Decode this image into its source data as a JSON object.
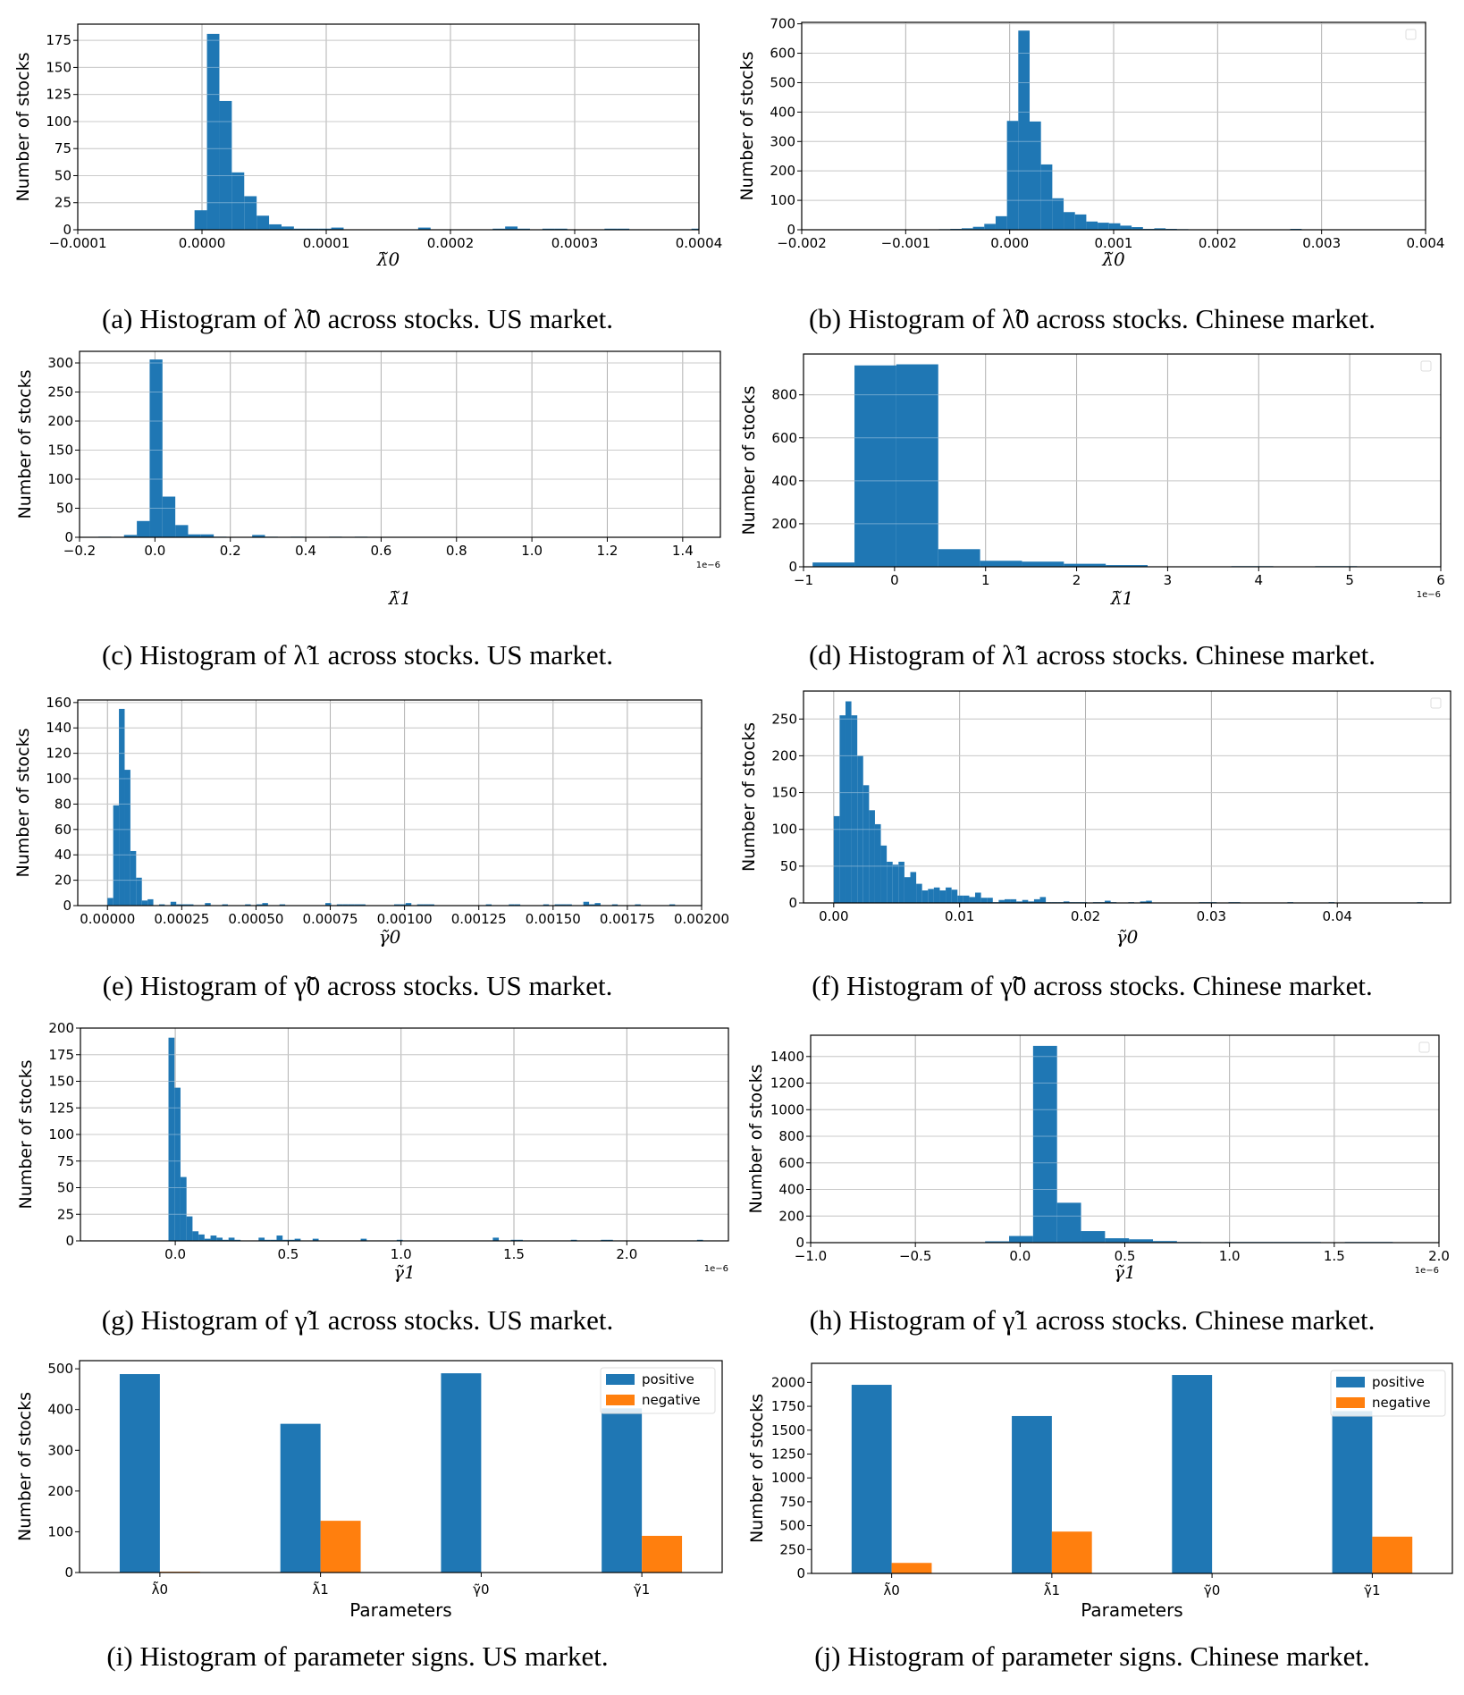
{
  "colors": {
    "bar": "#1f77b4",
    "positive": "#1f77b4",
    "negative": "#ff7f0e",
    "grid": "#b0b0b0"
  },
  "chart_data": [
    {
      "id": "a",
      "type": "bar",
      "caption": "(a) Histogram of λ̃0 across stocks. US market.",
      "xlabel": "λ̃0",
      "ylabel": "Number of stocks",
      "offset_label": "",
      "xlim": [
        -0.0001,
        0.0004
      ],
      "ylim": [
        0,
        190
      ],
      "xticks": [
        -0.0001,
        0.0,
        0.0001,
        0.0002,
        0.0003,
        0.0004
      ],
      "xtick_labels": [
        "−0.0001",
        "0.0000",
        "0.0001",
        "0.0002",
        "0.0003",
        "0.0004"
      ],
      "yticks": [
        0,
        25,
        50,
        75,
        100,
        125,
        150,
        175
      ],
      "ytick_labels": [
        "0",
        "25",
        "50",
        "75",
        "100",
        "125",
        "150",
        "175"
      ],
      "grid": true,
      "empty_legend": false,
      "bin_start": -6e-06,
      "bin_width": 1e-05,
      "counts": [
        18,
        181,
        119,
        53,
        31,
        13,
        5,
        3,
        1,
        1,
        1,
        2,
        0,
        0,
        0,
        0,
        0,
        0,
        2,
        0,
        0,
        0,
        0,
        0,
        1,
        3,
        1,
        0,
        1,
        1,
        0,
        0,
        0,
        1,
        1,
        0,
        0,
        0,
        0,
        0,
        1
      ]
    },
    {
      "id": "b",
      "type": "bar",
      "caption": "(b) Histogram of λ̃0 across stocks. Chinese market.",
      "xlabel": "λ̃0",
      "ylabel": "Number of stocks",
      "offset_label": "",
      "xlim": [
        -0.002,
        0.004
      ],
      "ylim": [
        0,
        705
      ],
      "xticks": [
        -0.002,
        -0.001,
        0.0,
        0.001,
        0.002,
        0.003,
        0.004
      ],
      "xtick_labels": [
        "−0.002",
        "−0.001",
        "0.000",
        "0.001",
        "0.002",
        "0.003",
        "0.004"
      ],
      "yticks": [
        0,
        100,
        200,
        300,
        400,
        500,
        600,
        700
      ],
      "ytick_labels": [
        "0",
        "100",
        "200",
        "300",
        "400",
        "500",
        "600",
        "700"
      ],
      "grid": true,
      "empty_legend": true,
      "bin_start": -0.00068,
      "bin_width": 0.000109,
      "counts": [
        2,
        3,
        5,
        10,
        20,
        46,
        370,
        677,
        368,
        222,
        107,
        60,
        52,
        28,
        24,
        22,
        14,
        9,
        3,
        5,
        3,
        2,
        1,
        1,
        1,
        0,
        0,
        0,
        0,
        0,
        0,
        3,
        0
      ]
    },
    {
      "id": "c",
      "type": "bar",
      "caption": "(c) Histogram of λ̃1 across stocks. US market.",
      "xlabel": "λ̃1",
      "ylabel": "Number of stocks",
      "offset_label": "1e−6",
      "xlim": [
        -0.2,
        1.5
      ],
      "ylim": [
        0,
        320
      ],
      "xticks": [
        -0.2,
        0.0,
        0.2,
        0.4,
        0.6,
        0.8,
        1.0,
        1.2,
        1.4
      ],
      "xtick_labels": [
        "−0.2",
        "0.0",
        "0.2",
        "0.4",
        "0.6",
        "0.8",
        "1.0",
        "1.2",
        "1.4"
      ],
      "yticks": [
        0,
        50,
        100,
        150,
        200,
        250,
        300
      ],
      "ytick_labels": [
        "0",
        "50",
        "100",
        "150",
        "200",
        "250",
        "300"
      ],
      "grid": true,
      "empty_legend": false,
      "bin_start": -0.15,
      "bin_width": 0.034,
      "counts": [
        1,
        0,
        4,
        28,
        306,
        70,
        21,
        5,
        5,
        1,
        0,
        0,
        4,
        1,
        0,
        1,
        0,
        0,
        1,
        0,
        1,
        0,
        0,
        0,
        0,
        0,
        0,
        0,
        0,
        0,
        0,
        0,
        0,
        0,
        0,
        0,
        0,
        0,
        0,
        0,
        0,
        0,
        0,
        0,
        0
      ]
    },
    {
      "id": "d",
      "type": "bar",
      "caption": "(d) Histogram of λ̃1 across stocks. Chinese market.",
      "xlabel": "λ̃1",
      "ylabel": "Number of stocks",
      "offset_label": "1e−6",
      "xlim": [
        -1,
        6
      ],
      "ylim": [
        0,
        990
      ],
      "xticks": [
        -1,
        0,
        1,
        2,
        3,
        4,
        5,
        6
      ],
      "xtick_labels": [
        "−1",
        "0",
        "1",
        "2",
        "3",
        "4",
        "5",
        "6"
      ],
      "yticks": [
        0,
        200,
        400,
        600,
        800
      ],
      "ytick_labels": [
        "0",
        "200",
        "400",
        "600",
        "800"
      ],
      "grid": true,
      "empty_legend": true,
      "bin_start": -0.9,
      "bin_width": 0.46,
      "counts": [
        20,
        937,
        942,
        82,
        28,
        24,
        14,
        8,
        1,
        1,
        3,
        1,
        3,
        1
      ]
    },
    {
      "id": "e",
      "type": "bar",
      "caption": "(e) Histogram of γ̃0 across stocks. US market.",
      "xlabel": "γ̃0",
      "ylabel": "Number of stocks",
      "offset_label": "",
      "xlim": [
        -0.0001,
        0.002
      ],
      "ylim": [
        0,
        162
      ],
      "xticks": [
        0.0,
        0.00025,
        0.0005,
        0.00075,
        0.001,
        0.00125,
        0.0015,
        0.00175,
        0.002
      ],
      "xtick_labels": [
        "0.00000",
        "0.00025",
        "0.00050",
        "0.00075",
        "0.00100",
        "0.00125",
        "0.00150",
        "0.00175",
        "0.00200"
      ],
      "yticks": [
        0,
        20,
        40,
        60,
        80,
        100,
        120,
        140,
        160
      ],
      "ytick_labels": [
        "0",
        "20",
        "40",
        "60",
        "80",
        "100",
        "120",
        "140",
        "160"
      ],
      "grid": true,
      "empty_legend": false,
      "bin_start": 0.0,
      "bin_width": 1.93e-05,
      "counts": [
        6,
        79,
        155,
        107,
        43,
        22,
        4,
        5,
        0,
        1,
        0,
        3,
        1,
        1,
        1,
        0,
        0,
        2,
        0,
        0,
        1,
        0,
        0,
        0,
        1,
        0,
        1,
        2,
        0,
        0,
        1,
        0,
        0,
        0,
        0,
        0,
        0,
        0,
        2,
        0,
        1,
        1,
        1,
        1,
        1,
        0,
        0,
        0,
        0,
        0,
        1,
        1,
        2,
        0,
        1,
        1,
        1,
        0,
        0,
        0,
        0,
        0,
        0,
        0,
        0,
        0,
        1,
        0,
        0,
        0,
        1,
        1,
        0,
        0,
        0,
        0,
        1,
        0,
        1,
        1,
        1,
        0,
        0,
        3,
        1,
        2,
        0,
        0,
        1,
        0,
        0,
        0,
        1,
        0,
        0,
        0,
        0,
        0,
        1,
        0
      ]
    },
    {
      "id": "f",
      "type": "bar",
      "caption": "(f) Histogram of γ̃0 across stocks. Chinese market.",
      "xlabel": "γ̃0",
      "ylabel": "Number of stocks",
      "offset_label": "",
      "xlim": [
        -0.0024,
        0.049
      ],
      "ylim": [
        0,
        288
      ],
      "xticks": [
        0.0,
        0.01,
        0.02,
        0.03,
        0.04
      ],
      "xtick_labels": [
        "0.00",
        "0.01",
        "0.02",
        "0.03",
        "0.04"
      ],
      "yticks": [
        0,
        50,
        100,
        150,
        200,
        250
      ],
      "ytick_labels": [
        "0",
        "50",
        "100",
        "150",
        "200",
        "250"
      ],
      "grid": true,
      "empty_legend": true,
      "bin_start": 0.0,
      "bin_width": 0.000468,
      "counts": [
        118,
        255,
        274,
        255,
        200,
        160,
        126,
        107,
        78,
        56,
        52,
        56,
        35,
        42,
        26,
        17,
        19,
        21,
        17,
        21,
        18,
        10,
        10,
        8,
        14,
        7,
        7,
        1,
        4,
        5,
        5,
        2,
        4,
        2,
        5,
        8,
        1,
        1,
        1,
        2,
        1,
        1,
        1,
        0,
        1,
        1,
        3,
        1,
        0,
        0,
        1,
        0,
        2,
        3,
        0,
        0,
        0,
        0,
        0,
        0,
        0,
        0,
        1,
        1,
        1,
        0,
        0,
        1,
        1,
        0,
        0,
        0,
        0,
        0,
        0,
        0,
        0,
        1,
        0,
        0,
        0,
        0,
        0,
        0,
        1,
        0,
        0,
        0,
        0,
        0,
        0,
        0,
        0,
        0,
        0,
        0,
        0,
        0,
        0,
        1
      ]
    },
    {
      "id": "g",
      "type": "bar",
      "caption": "(g) Histogram of γ̃1 across stocks. US market.",
      "xlabel": "γ̃1",
      "ylabel": "Number of stocks",
      "offset_label": "1e−6",
      "xlim": [
        -0.42,
        2.45
      ],
      "ylim": [
        0,
        200
      ],
      "xticks": [
        0.0,
        0.5,
        1.0,
        1.5,
        2.0
      ],
      "xtick_labels": [
        "0.0",
        "0.5",
        "1.0",
        "1.5",
        "2.0"
      ],
      "yticks": [
        0,
        25,
        50,
        75,
        100,
        125,
        150,
        175,
        200
      ],
      "ytick_labels": [
        "0",
        "25",
        "50",
        "75",
        "100",
        "125",
        "150",
        "175",
        "200"
      ],
      "grid": true,
      "empty_legend": false,
      "bin_start": -0.03,
      "bin_width": 0.0266,
      "counts": [
        191,
        144,
        60,
        23,
        9,
        6,
        2,
        5,
        3,
        1,
        3,
        1,
        0,
        0,
        0,
        3,
        1,
        1,
        5,
        1,
        1,
        2,
        0,
        0,
        2,
        0,
        0,
        0,
        0,
        0,
        0,
        0,
        2,
        0,
        0,
        0,
        0,
        0,
        1,
        0,
        0,
        0,
        0,
        0,
        0,
        0,
        0,
        0,
        0,
        0,
        0,
        0,
        0,
        0,
        3,
        0,
        0,
        1,
        1,
        0,
        0,
        0,
        0,
        0,
        0,
        0,
        0,
        1,
        0,
        0,
        0,
        0,
        1,
        1,
        0,
        0,
        0,
        0,
        0,
        0,
        0,
        0,
        0,
        0,
        0,
        0,
        0,
        0,
        1
      ]
    },
    {
      "id": "h",
      "type": "bar",
      "caption": "(h) Histogram of γ̃1 across stocks. Chinese market.",
      "xlabel": "γ̃1",
      "ylabel": "Number of stocks",
      "offset_label": "1e−6",
      "xlim": [
        -1.0,
        2.0
      ],
      "ylim": [
        0,
        1560
      ],
      "xticks": [
        -1.0,
        -0.5,
        0.0,
        0.5,
        1.0,
        1.5,
        2.0
      ],
      "xtick_labels": [
        "−1.0",
        "−0.5",
        "0.0",
        "0.5",
        "1.0",
        "1.5",
        "2.0"
      ],
      "yticks": [
        0,
        200,
        400,
        600,
        800,
        1000,
        1200,
        1400
      ],
      "ytick_labels": [
        "0",
        "200",
        "400",
        "600",
        "800",
        "1000",
        "1200",
        "1400"
      ],
      "grid": true,
      "empty_legend": true,
      "bin_start": -0.625,
      "bin_width": 0.1145,
      "counts": [
        3,
        3,
        3,
        3,
        10,
        50,
        1480,
        300,
        87,
        33,
        25,
        12,
        5,
        4,
        5,
        5,
        5,
        5,
        0,
        5,
        5
      ]
    },
    {
      "id": "i",
      "type": "bar",
      "caption": "(i) Histogram of parameter signs. US market.",
      "xlabel": "Parameters",
      "ylabel": "Number of stocks",
      "categories": [
        "λ̃0",
        "λ̃1",
        "γ̃0",
        "γ̃1"
      ],
      "series": [
        {
          "name": "positive",
          "values": [
            487,
            365,
            489,
            403
          ]
        },
        {
          "name": "negative",
          "values": [
            2,
            127,
            1,
            90
          ]
        }
      ],
      "ylim": [
        0,
        520
      ],
      "yticks": [
        0,
        100,
        200,
        300,
        400,
        500
      ],
      "ytick_labels": [
        "0",
        "100",
        "200",
        "300",
        "400",
        "500"
      ],
      "legend": "top-right",
      "grid": false
    },
    {
      "id": "j",
      "type": "bar",
      "caption": "(j) Histogram of parameter signs. Chinese market.",
      "xlabel": "Parameters",
      "ylabel": "Number of stocks",
      "categories": [
        "λ̃0",
        "λ̃1",
        "γ̃0",
        "γ̃1"
      ],
      "series": [
        {
          "name": "positive",
          "values": [
            1975,
            1648,
            2078,
            1700
          ]
        },
        {
          "name": "negative",
          "values": [
            110,
            438,
            0,
            385
          ]
        }
      ],
      "ylim": [
        0,
        2200
      ],
      "yticks": [
        0,
        250,
        500,
        750,
        1000,
        1250,
        1500,
        1750,
        2000
      ],
      "ytick_labels": [
        "0",
        "250",
        "500",
        "750",
        "1000",
        "1250",
        "1500",
        "1750",
        "2000"
      ],
      "legend": "top-right",
      "grid": false
    }
  ]
}
